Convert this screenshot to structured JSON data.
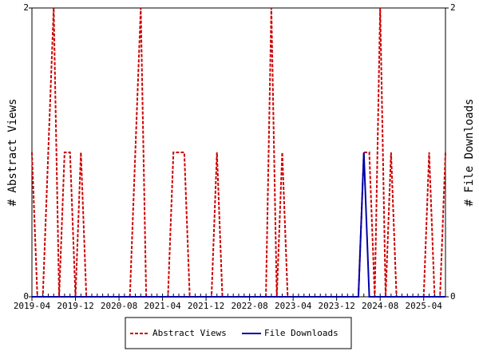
{
  "chart_data": {
    "type": "line",
    "y_label": "# Abstract Views",
    "y2_label": "# File Downloads",
    "x": [
      "2019-04",
      "2019-05",
      "2019-06",
      "2019-07",
      "2019-08",
      "2019-09",
      "2019-10",
      "2019-11",
      "2019-12",
      "2020-01",
      "2020-02",
      "2020-03",
      "2020-04",
      "2020-05",
      "2020-06",
      "2020-07",
      "2020-08",
      "2020-09",
      "2020-10",
      "2020-11",
      "2020-12",
      "2021-01",
      "2021-02",
      "2021-03",
      "2021-04",
      "2021-05",
      "2021-06",
      "2021-07",
      "2021-08",
      "2021-09",
      "2021-10",
      "2021-11",
      "2021-12",
      "2022-01",
      "2022-02",
      "2022-03",
      "2022-04",
      "2022-05",
      "2022-06",
      "2022-07",
      "2022-08",
      "2022-09",
      "2022-10",
      "2022-11",
      "2022-12",
      "2023-01",
      "2023-02",
      "2023-03",
      "2023-04",
      "2023-05",
      "2023-06",
      "2023-07",
      "2023-08",
      "2023-09",
      "2023-10",
      "2023-11",
      "2023-12",
      "2024-01",
      "2024-02",
      "2024-03",
      "2024-04",
      "2024-05",
      "2024-06",
      "2024-07",
      "2024-08",
      "2024-09",
      "2024-10",
      "2024-11",
      "2024-12",
      "2025-01",
      "2025-02",
      "2025-03",
      "2025-04",
      "2025-05",
      "2025-06",
      "2025-07",
      "2025-08"
    ],
    "xticks": [
      "2019-04",
      "2019-12",
      "2020-08",
      "2021-04",
      "2021-12",
      "2022-08",
      "2023-04",
      "2023-12",
      "2024-08",
      "2025-04"
    ],
    "series": [
      {
        "name": "Abstract Views",
        "color": "#cc0000",
        "dashed": true,
        "values": [
          1,
          0,
          0,
          1,
          2,
          0,
          1,
          1,
          0,
          1,
          0,
          0,
          0,
          0,
          0,
          0,
          0,
          0,
          0,
          1,
          2,
          0,
          0,
          0,
          0,
          0,
          1,
          1,
          1,
          0,
          0,
          0,
          0,
          0,
          1,
          0,
          0,
          0,
          0,
          0,
          0,
          0,
          0,
          0,
          2,
          0,
          1,
          0,
          0,
          0,
          0,
          0,
          0,
          0,
          0,
          0,
          0,
          0,
          0,
          0,
          0,
          1,
          1,
          0,
          2,
          0,
          1,
          0,
          0,
          0,
          0,
          0,
          0,
          1,
          0,
          0,
          1
        ]
      },
      {
        "name": "File Downloads",
        "color": "#0000aa",
        "dashed": false,
        "axis": "y2",
        "values": [
          0,
          0,
          0,
          0,
          0,
          0,
          0,
          0,
          0,
          0,
          0,
          0,
          0,
          0,
          0,
          0,
          0,
          0,
          0,
          0,
          0,
          0,
          0,
          0,
          0,
          0,
          0,
          0,
          0,
          0,
          0,
          0,
          0,
          0,
          0,
          0,
          0,
          0,
          0,
          0,
          0,
          0,
          0,
          0,
          0,
          0,
          0,
          0,
          0,
          0,
          0,
          0,
          0,
          0,
          0,
          0,
          0,
          0,
          0,
          0,
          0,
          1,
          0,
          0,
          0,
          0,
          0,
          0,
          0,
          0,
          0,
          0,
          0,
          0,
          0,
          0,
          0
        ]
      }
    ],
    "ylim": [
      0,
      2
    ],
    "yticks": [
      0,
      2
    ],
    "y2lim": [
      0,
      2
    ],
    "y2ticks": [
      0,
      2
    ]
  }
}
